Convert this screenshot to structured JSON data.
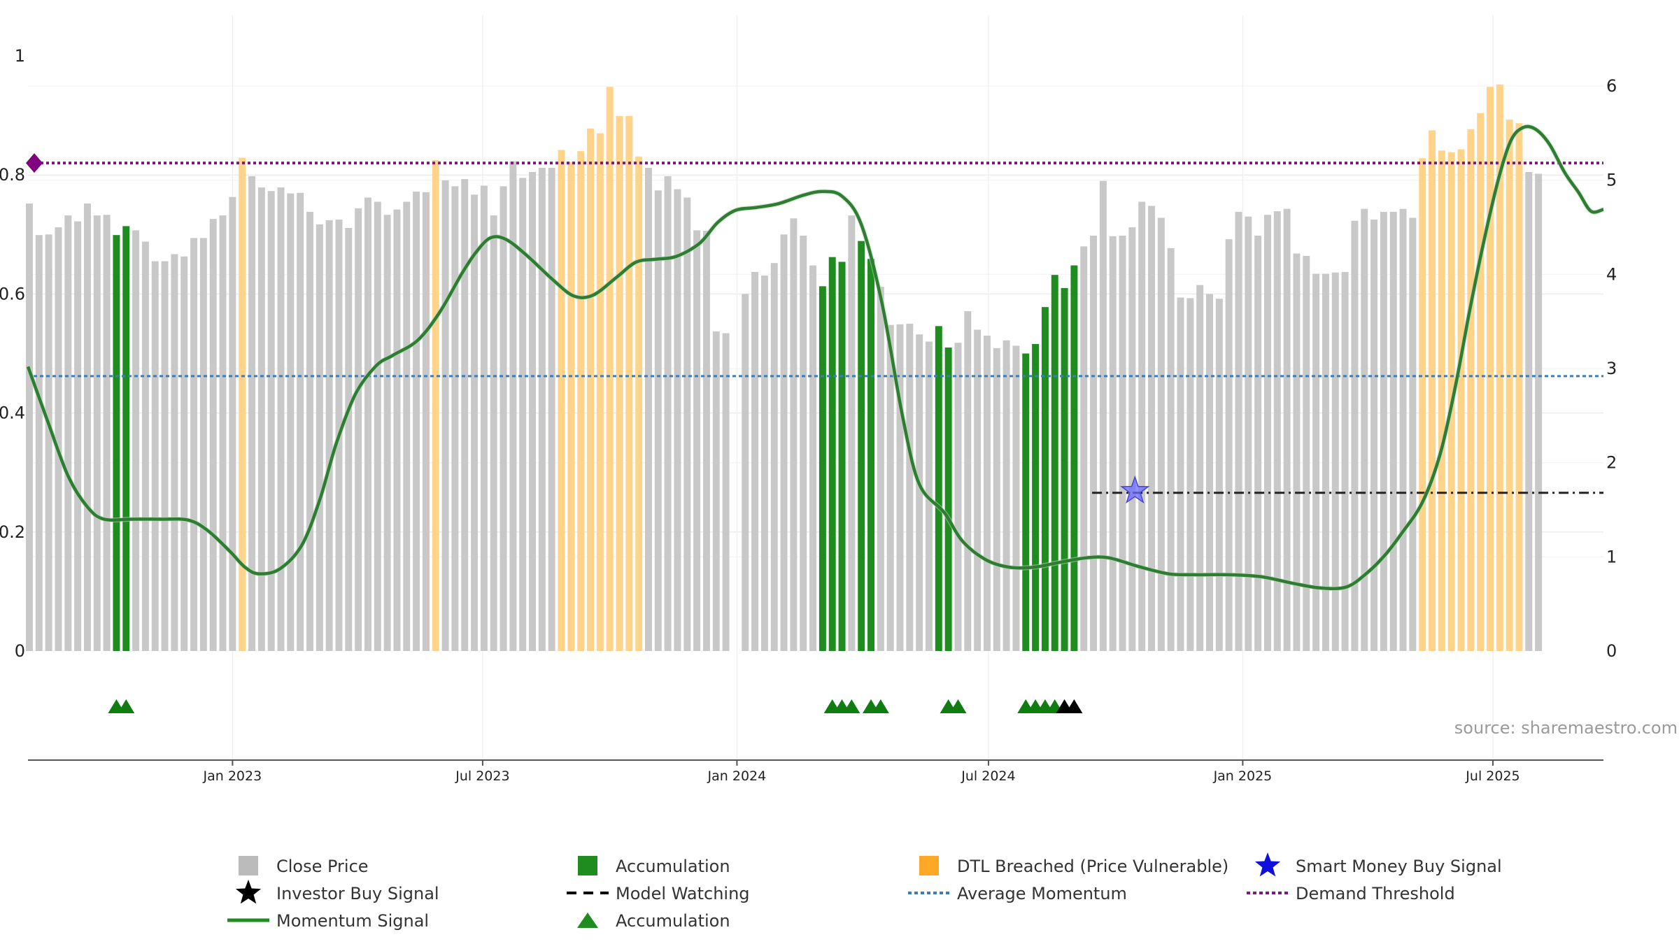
{
  "chart_data": {
    "type": "bar",
    "source": "source: sharemaestro.com",
    "y_left": {
      "ticks": [
        "0",
        "0.2",
        "0.4",
        "0.6",
        "0.8",
        "1"
      ],
      "range": [
        0,
        1
      ]
    },
    "y_right": {
      "ticks": [
        "0",
        "1",
        "2",
        "3",
        "4",
        "5",
        "6"
      ],
      "range": [
        0,
        6.75
      ]
    },
    "x_ticks": [
      {
        "label": "Jan 2023",
        "date": "2023-01-01"
      },
      {
        "label": "Jul 2023",
        "date": "2023-07-01"
      },
      {
        "label": "Jan 2024",
        "date": "2024-01-01"
      },
      {
        "label": "Jul 2024",
        "date": "2024-07-01"
      },
      {
        "label": "Jan 2025",
        "date": "2025-01-01"
      },
      {
        "label": "Jul 2025",
        "date": "2025-07-01"
      }
    ],
    "x_range": [
      "2022-08-06",
      "2025-09-19"
    ],
    "bar_start": "2022-08-07",
    "bar_interval_days": 7,
    "close_price": [
      0.752,
      0.699,
      0.7,
      0.712,
      0.732,
      0.722,
      0.752,
      0.732,
      0.733,
      0.699,
      0.714,
      0.707,
      0.688,
      0.655,
      0.655,
      0.667,
      0.663,
      0.694,
      0.694,
      0.726,
      0.732,
      0.763,
      0.829,
      0.798,
      0.779,
      0.773,
      0.779,
      0.769,
      0.77,
      0.738,
      0.717,
      0.724,
      0.725,
      0.711,
      0.744,
      0.762,
      0.755,
      0.733,
      0.742,
      0.755,
      0.772,
      0.771,
      0.825,
      0.791,
      0.781,
      0.793,
      0.767,
      0.782,
      0.732,
      0.781,
      0.823,
      0.795,
      0.805,
      0.812,
      0.812,
      0.842,
      0.822,
      0.84,
      0.878,
      0.87,
      0.948,
      0.899,
      0.899,
      0.831,
      0.812,
      0.774,
      0.798,
      0.776,
      0.762,
      0.707,
      0.706,
      0.537,
      0.534,
      null,
      0.6,
      0.637,
      0.631,
      0.652,
      0.7,
      0.727,
      0.698,
      0.648,
      0.613,
      0.662,
      0.654,
      0.732,
      0.689,
      0.659,
      0.612,
      0.548,
      0.549,
      0.55,
      0.532,
      0.52,
      0.546,
      0.51,
      0.518,
      0.571,
      0.54,
      0.53,
      0.509,
      0.522,
      0.513,
      0.5,
      0.516,
      0.578,
      0.632,
      0.61,
      0.648,
      0.68,
      0.698,
      0.79,
      0.697,
      0.698,
      0.712,
      0.755,
      0.748,
      0.728,
      0.677,
      0.594,
      0.593,
      0.615,
      0.6,
      0.592,
      0.692,
      0.738,
      0.73,
      0.698,
      0.733,
      0.739,
      0.743,
      0.668,
      0.664,
      0.634,
      0.634,
      0.636,
      0.637,
      0.723,
      0.743,
      0.725,
      0.738,
      0.738,
      0.743,
      0.728,
      0.828,
      0.875,
      0.841,
      0.838,
      0.843,
      0.877,
      0.904,
      0.948,
      0.952,
      0.893,
      0.887,
      0.805,
      0.802
    ],
    "bar_categories": {
      "accumulation_bars": [
        9,
        10,
        82,
        83,
        84,
        86,
        87,
        94,
        95,
        103,
        104,
        105,
        106,
        107,
        108
      ],
      "dtl_breached_bars": [
        22,
        42,
        55,
        56,
        57,
        58,
        59,
        60,
        61,
        62,
        63,
        144,
        145,
        146,
        147,
        148,
        149,
        150,
        151,
        152,
        153,
        154
      ]
    },
    "momentum_signal": {
      "axis": "right",
      "points": [
        [
          "2022-08-06",
          3.02
        ],
        [
          "2022-08-20",
          2.45
        ],
        [
          "2022-09-04",
          1.86
        ],
        [
          "2022-09-18",
          1.53
        ],
        [
          "2022-09-30",
          1.4
        ],
        [
          "2022-10-20",
          1.4
        ],
        [
          "2022-11-10",
          1.4
        ],
        [
          "2022-11-30",
          1.39
        ],
        [
          "2022-12-14",
          1.28
        ],
        [
          "2022-12-30",
          1.06
        ],
        [
          "2023-01-10",
          0.89
        ],
        [
          "2023-01-20",
          0.82
        ],
        [
          "2023-02-04",
          0.87
        ],
        [
          "2023-02-20",
          1.12
        ],
        [
          "2023-03-05",
          1.6
        ],
        [
          "2023-03-17",
          2.2
        ],
        [
          "2023-03-31",
          2.73
        ],
        [
          "2023-04-15",
          3.03
        ],
        [
          "2023-04-27",
          3.14
        ],
        [
          "2023-05-15",
          3.3
        ],
        [
          "2023-05-31",
          3.6
        ],
        [
          "2023-06-16",
          4.01
        ],
        [
          "2023-06-27",
          4.25
        ],
        [
          "2023-07-07",
          4.39
        ],
        [
          "2023-07-18",
          4.37
        ],
        [
          "2023-08-02",
          4.2
        ],
        [
          "2023-08-21",
          3.94
        ],
        [
          "2023-09-05",
          3.77
        ],
        [
          "2023-09-19",
          3.78
        ],
        [
          "2023-10-06",
          3.97
        ],
        [
          "2023-10-20",
          4.13
        ],
        [
          "2023-11-03",
          4.16
        ],
        [
          "2023-11-18",
          4.19
        ],
        [
          "2023-12-05",
          4.33
        ],
        [
          "2023-12-18",
          4.55
        ],
        [
          "2023-12-31",
          4.68
        ],
        [
          "2024-01-15",
          4.71
        ],
        [
          "2024-01-31",
          4.75
        ],
        [
          "2024-02-18",
          4.84
        ],
        [
          "2024-03-03",
          4.88
        ],
        [
          "2024-03-17",
          4.83
        ],
        [
          "2024-03-31",
          4.53
        ],
        [
          "2024-04-15",
          3.69
        ],
        [
          "2024-04-30",
          2.48
        ],
        [
          "2024-05-12",
          1.77
        ],
        [
          "2024-05-30",
          1.47
        ],
        [
          "2024-06-12",
          1.17
        ],
        [
          "2024-06-29",
          0.97
        ],
        [
          "2024-07-16",
          0.89
        ],
        [
          "2024-08-03",
          0.89
        ],
        [
          "2024-08-21",
          0.94
        ],
        [
          "2024-09-10",
          0.99
        ],
        [
          "2024-09-26",
          0.99
        ],
        [
          "2024-10-17",
          0.9
        ],
        [
          "2024-11-08",
          0.82
        ],
        [
          "2024-11-26",
          0.81
        ],
        [
          "2024-12-21",
          0.81
        ],
        [
          "2025-01-14",
          0.79
        ],
        [
          "2025-02-06",
          0.72
        ],
        [
          "2025-02-26",
          0.67
        ],
        [
          "2025-03-17",
          0.68
        ],
        [
          "2025-04-01",
          0.83
        ],
        [
          "2025-04-14",
          1.02
        ],
        [
          "2025-04-26",
          1.25
        ],
        [
          "2025-05-11",
          1.58
        ],
        [
          "2025-05-24",
          2.1
        ],
        [
          "2025-06-04",
          2.82
        ],
        [
          "2025-06-14",
          3.6
        ],
        [
          "2025-06-24",
          4.32
        ],
        [
          "2025-07-05",
          5.01
        ],
        [
          "2025-07-14",
          5.42
        ],
        [
          "2025-07-23",
          5.56
        ],
        [
          "2025-08-01",
          5.54
        ],
        [
          "2025-08-11",
          5.38
        ],
        [
          "2025-08-22",
          5.08
        ],
        [
          "2025-09-01",
          4.87
        ],
        [
          "2025-09-10",
          4.67
        ],
        [
          "2025-09-19",
          4.69
        ]
      ],
      "note_segments": "green"
    },
    "average_momentum": {
      "axis": "left",
      "value": 0.462
    },
    "demand_threshold": {
      "axis": "left",
      "value": 0.82
    },
    "model_watching": {
      "axis": "right",
      "value": 1.68,
      "from": "2024-09-14",
      "to": "2025-09-19"
    },
    "smart_money_buy_signal": {
      "date": "2024-10-15",
      "value": 1.7,
      "axis": "right"
    },
    "accumulation_markers": [
      "2022-10-09",
      "2022-10-16",
      "2024-03-10",
      "2024-03-17",
      "2024-03-24",
      "2024-04-07",
      "2024-04-14",
      "2024-06-02",
      "2024-06-09",
      "2024-07-28",
      "2024-08-04",
      "2024-08-11",
      "2024-08-18"
    ],
    "investor_buy_markers": [
      "2024-08-25",
      "2024-09-01"
    ],
    "colors": {
      "close_price": "#c8c8c8",
      "accumulation": "#1e8c1e",
      "dtl_breached": "#ffd48a",
      "momentum": "#2e7d32",
      "average_momentum": "#3a7db8",
      "demand_threshold": "#7b1c7b",
      "model_watching": "#222222",
      "smart_money": "#1010dd"
    },
    "legend": [
      {
        "label": "Close Price",
        "kind": "square",
        "color": "#bbbbbb"
      },
      {
        "label": "Accumulation",
        "kind": "square",
        "color": "#1e8c1e"
      },
      {
        "label": "DTL Breached (Price Vulnerable)",
        "kind": "square",
        "color": "#ffa726"
      },
      {
        "label": "Smart Money Buy Signal",
        "kind": "star",
        "color": "#1010dd"
      },
      {
        "label": "Investor Buy Signal",
        "kind": "star",
        "color": "#000000"
      },
      {
        "label": "Model Watching",
        "kind": "dash",
        "color": "#000000"
      },
      {
        "label": "Average Momentum",
        "kind": "dot",
        "color": "#3a7db8"
      },
      {
        "label": "Demand Threshold",
        "kind": "dot",
        "color": "#7b1c7b"
      },
      {
        "label": "Momentum Signal",
        "kind": "line",
        "color": "#1e8c1e"
      },
      {
        "label": "Accumulation",
        "kind": "triangle",
        "color": "#1e8c1e"
      }
    ]
  }
}
